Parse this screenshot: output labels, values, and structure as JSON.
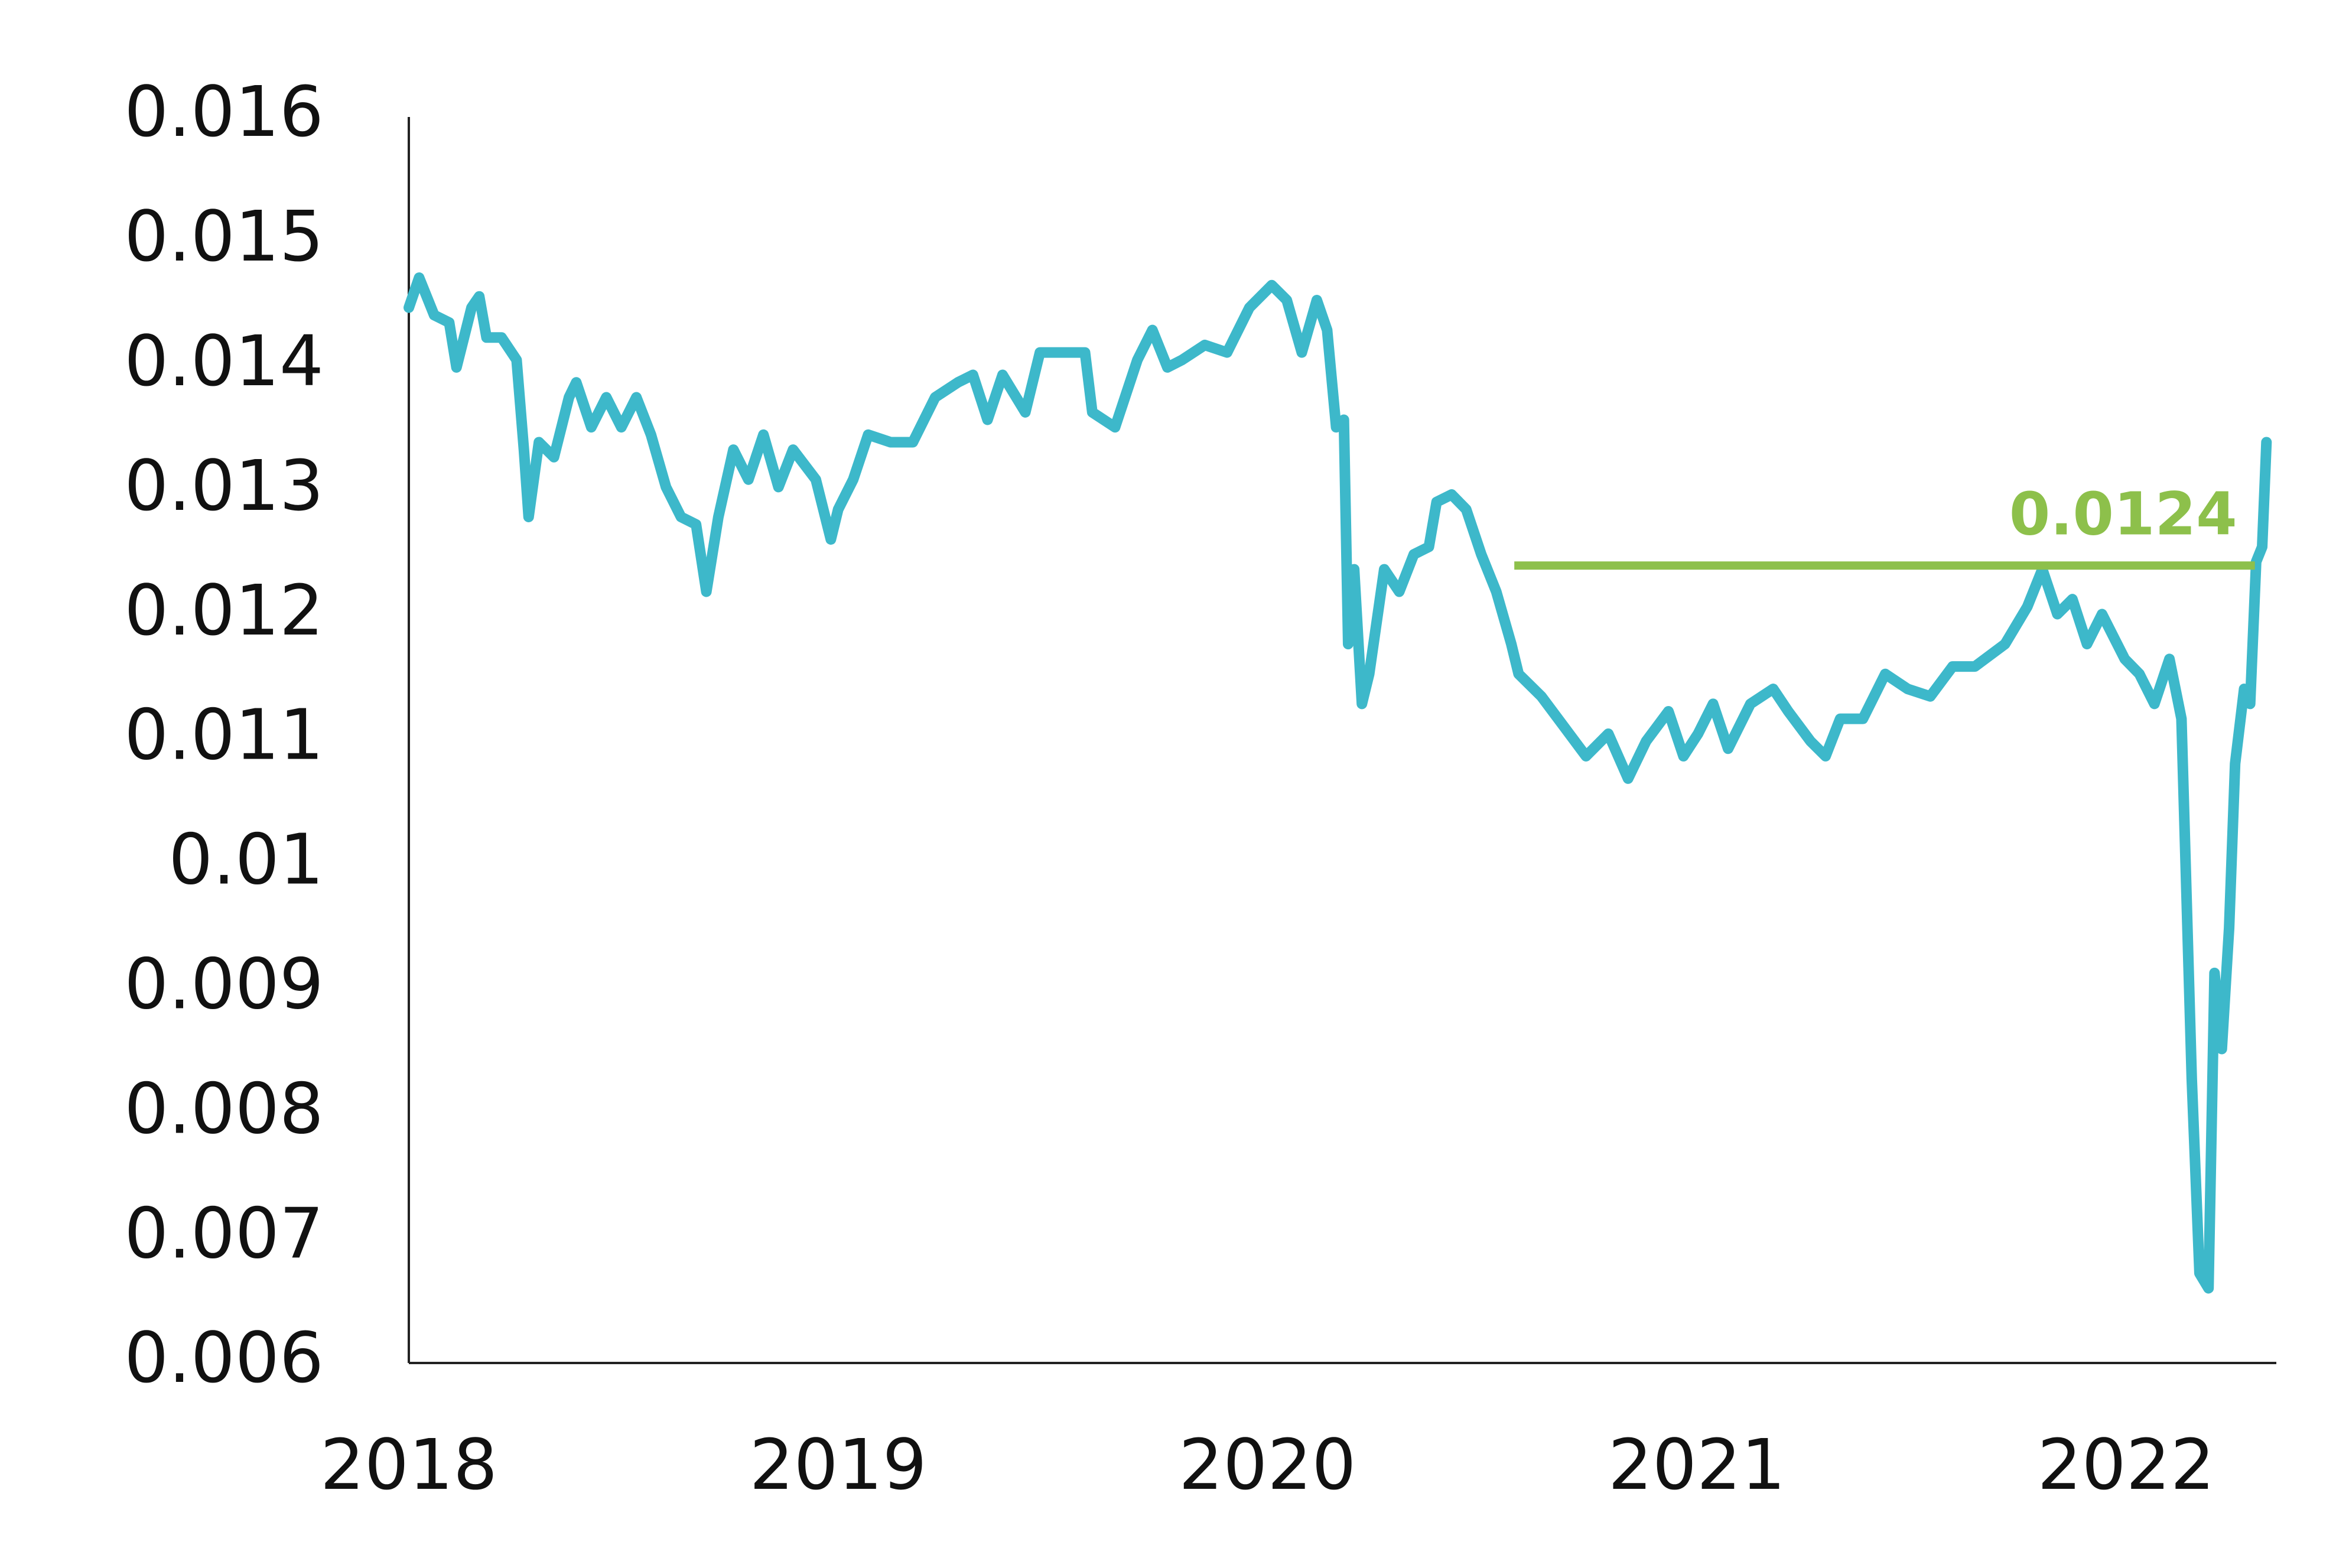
{
  "chart_data": {
    "type": "line",
    "x": [
      2018,
      2018.024,
      2018.059,
      2018.094,
      2018.111,
      2018.146,
      2018.164,
      2018.181,
      2018.216,
      2018.251,
      2018.268,
      2018.279,
      2018.303,
      2018.338,
      2018.373,
      2018.39,
      2018.425,
      2018.46,
      2018.495,
      2018.53,
      2018.564,
      2018.599,
      2018.634,
      2018.669,
      2018.693,
      2018.721,
      2018.756,
      2018.791,
      2018.826,
      2018.861,
      2018.895,
      2018.948,
      2018.983,
      2019,
      2019.035,
      2019.07,
      2019.122,
      2019.174,
      2019.226,
      2019.279,
      2019.314,
      2019.348,
      2019.383,
      2019.436,
      2019.47,
      2019.523,
      2019.575,
      2019.592,
      2019.645,
      2019.697,
      2019.732,
      2019.767,
      2019.801,
      2019.854,
      2019.906,
      2019.958,
      2020.01,
      2020.045,
      2020.08,
      2020.115,
      2020.139,
      2020.16,
      2020.178,
      2020.188,
      2020.202,
      2020.22,
      2020.237,
      2020.272,
      2020.307,
      2020.341,
      2020.376,
      2020.394,
      2020.429,
      2020.463,
      2020.498,
      2020.533,
      2020.568,
      2020.585,
      2020.638,
      2020.69,
      2020.742,
      2020.794,
      2020.84,
      2020.882,
      2020.934,
      2020.969,
      2021.003,
      2021.038,
      2021.073,
      2021.125,
      2021.178,
      2021.213,
      2021.265,
      2021.3,
      2021.334,
      2021.387,
      2021.439,
      2021.491,
      2021.544,
      2021.596,
      2021.648,
      2021.718,
      2021.77,
      2021.805,
      2021.84,
      2021.875,
      2021.909,
      2021.944,
      2021.997,
      2022.031,
      2022.066,
      2022.101,
      2022.129,
      2022.153,
      2022.171,
      2022.192,
      2022.206,
      2022.223,
      2022.24,
      2022.254,
      2022.275,
      2022.289,
      2022.303,
      2022.317,
      2022.327
    ],
    "series": [
      {
        "color": "#3db8ca",
        "values": [
          0.01447,
          0.01471,
          0.01441,
          0.01435,
          0.01399,
          0.01447,
          0.01456,
          0.01423,
          0.01423,
          0.01405,
          0.01333,
          0.01279,
          0.01339,
          0.01327,
          0.01375,
          0.01387,
          0.01351,
          0.01375,
          0.01351,
          0.01375,
          0.01345,
          0.01303,
          0.01279,
          0.01273,
          0.01219,
          0.01279,
          0.01333,
          0.01309,
          0.01345,
          0.01303,
          0.01333,
          0.01309,
          0.01261,
          0.01285,
          0.01309,
          0.01345,
          0.01339,
          0.01339,
          0.01375,
          0.01387,
          0.01393,
          0.01357,
          0.01393,
          0.01363,
          0.01411,
          0.01411,
          0.01411,
          0.01363,
          0.01351,
          0.01405,
          0.01429,
          0.01399,
          0.01405,
          0.01417,
          0.01411,
          0.01447,
          0.01465,
          0.01453,
          0.01411,
          0.01453,
          0.01429,
          0.01351,
          0.01357,
          0.01177,
          0.01237,
          0.01129,
          0.01153,
          0.01237,
          0.01219,
          0.01249,
          0.01255,
          0.01291,
          0.01297,
          0.01285,
          0.01249,
          0.01219,
          0.01177,
          0.01153,
          0.01135,
          0.01111,
          0.01087,
          0.01105,
          0.01069,
          0.01099,
          0.01123,
          0.01087,
          0.01105,
          0.01129,
          0.01093,
          0.01129,
          0.01141,
          0.01123,
          0.01099,
          0.01087,
          0.01117,
          0.01117,
          0.01153,
          0.01141,
          0.01135,
          0.01159,
          0.01159,
          0.01177,
          0.01207,
          0.01237,
          0.01201,
          0.01213,
          0.01177,
          0.01201,
          0.01165,
          0.01153,
          0.01129,
          0.01165,
          0.01117,
          0.00828,
          0.00672,
          0.0066,
          0.00913,
          0.00852,
          0.00949,
          0.01081,
          0.01141,
          0.01129,
          0.01243,
          0.01255,
          0.01339
        ]
      }
    ],
    "reference_line": {
      "value": 0.0124,
      "x": [
        2020.575,
        2022.3
      ],
      "color": "#8dc04b"
    },
    "xlim": [
      2018,
      2022.35
    ],
    "xticks": [
      2018,
      2019,
      2020,
      2021,
      2022
    ],
    "ylim": [
      0.006,
      0.016
    ],
    "yticks": [
      0.006,
      0.007,
      0.008,
      0.009,
      0.01,
      0.011,
      0.012,
      0.013,
      0.014,
      0.015,
      0.016
    ],
    "grid": false
  }
}
